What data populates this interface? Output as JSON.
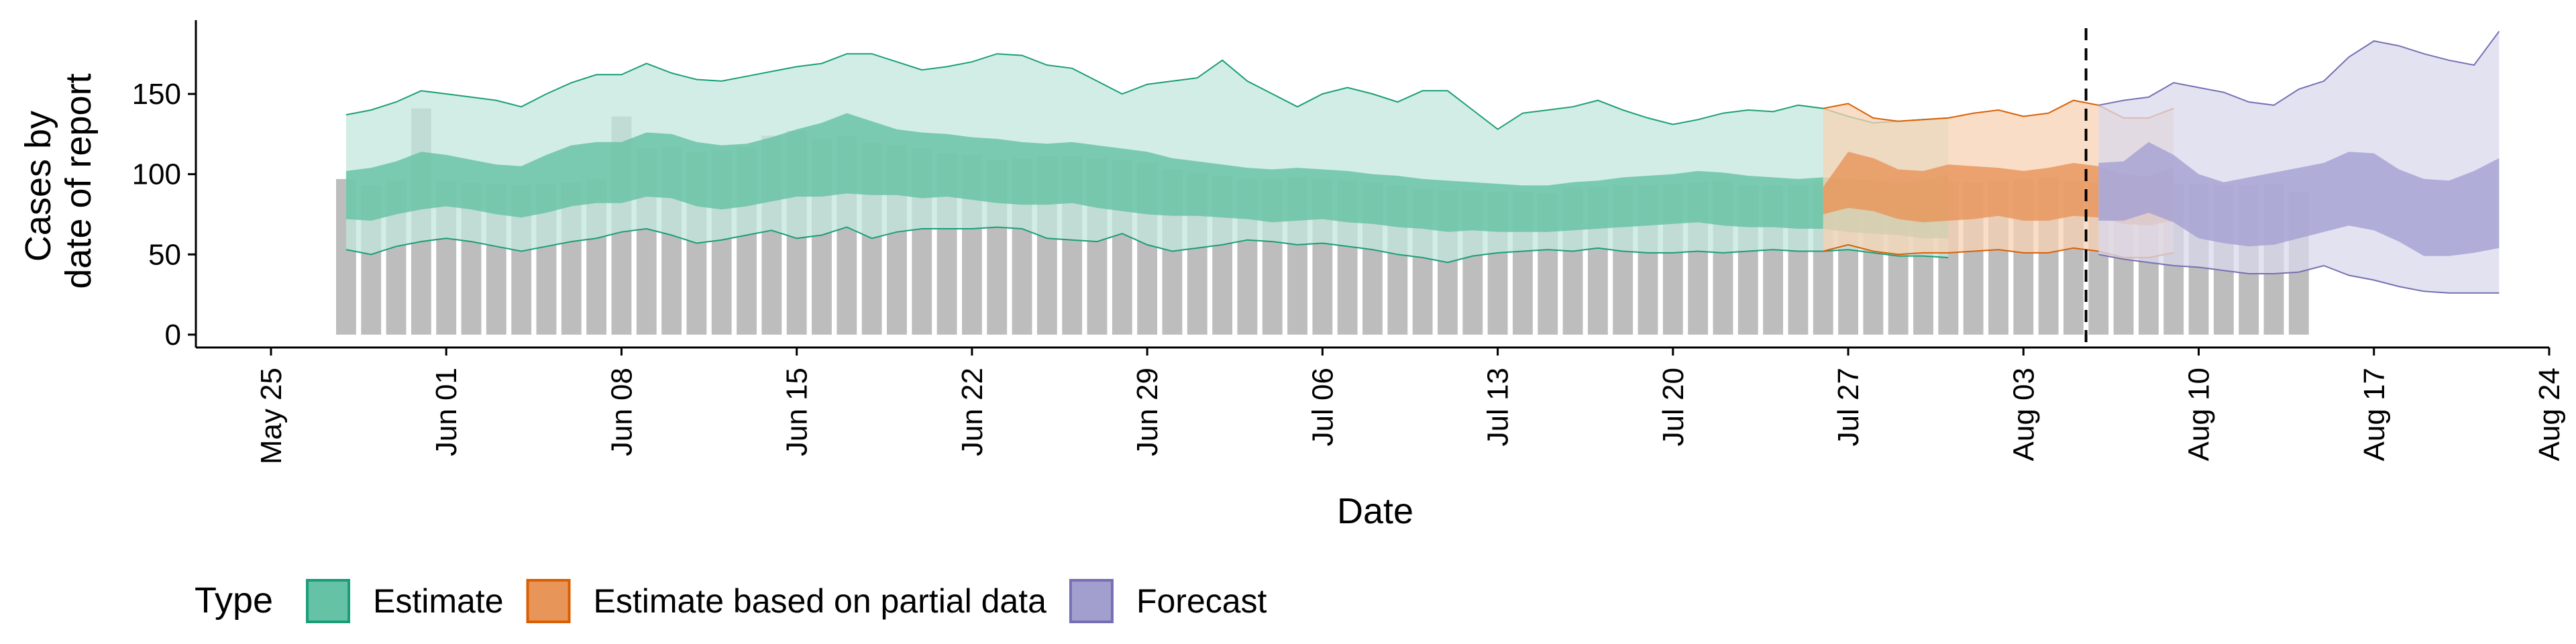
{
  "chart_data": {
    "type": "area",
    "xlabel": "Date",
    "ylabel_lines": [
      "Cases by",
      "date of report"
    ],
    "xlim": [
      "2020-05-22",
      "2020-08-24"
    ],
    "ylim": [
      -8,
      196
    ],
    "x_ticks": [
      {
        "date": "2020-05-25",
        "label": "May 25"
      },
      {
        "date": "2020-06-01",
        "label": "Jun 01"
      },
      {
        "date": "2020-06-08",
        "label": "Jun 08"
      },
      {
        "date": "2020-06-15",
        "label": "Jun 15"
      },
      {
        "date": "2020-06-22",
        "label": "Jun 22"
      },
      {
        "date": "2020-06-29",
        "label": "Jun 29"
      },
      {
        "date": "2020-07-06",
        "label": "Jul 06"
      },
      {
        "date": "2020-07-13",
        "label": "Jul 13"
      },
      {
        "date": "2020-07-20",
        "label": "Jul 20"
      },
      {
        "date": "2020-07-27",
        "label": "Jul 27"
      },
      {
        "date": "2020-08-03",
        "label": "Aug 03"
      },
      {
        "date": "2020-08-10",
        "label": "Aug 10"
      },
      {
        "date": "2020-08-17",
        "label": "Aug 17"
      },
      {
        "date": "2020-08-24",
        "label": "Aug 24"
      }
    ],
    "y_ticks": [
      0,
      50,
      100,
      150
    ],
    "grid": false,
    "legend_position": "bottom-left",
    "legend_title": "Type",
    "legend": [
      {
        "label": "Estimate",
        "fill": "#66c2a5",
        "stroke": "#1b9e77"
      },
      {
        "label": "Estimate based on partial data",
        "fill": "#e8955a",
        "stroke": "#d95f02"
      },
      {
        "label": "Forecast",
        "fill": "#a29fcf",
        "stroke": "#7570b3"
      }
    ],
    "colors": {
      "bars": "#bdbdbd",
      "estimate_outer": "#c3e7dc",
      "estimate_inner": "#66c2a5",
      "estimate_line": "#1b9e77",
      "partial_outer": "#f7d1b4",
      "partial_inner": "#e8955a",
      "partial_line": "#d95f02",
      "forecast_outer": "#d9d8ec",
      "forecast_inner": "#a5a1d3",
      "forecast_line": "#7570b3"
    },
    "reported_cases": {
      "start_date": "2020-05-28",
      "values": [
        97,
        93,
        96,
        141,
        96,
        95,
        94,
        93,
        94,
        95,
        97,
        136,
        116,
        117,
        114,
        115,
        117,
        124,
        127,
        122,
        124,
        120,
        118,
        116,
        113,
        112,
        109,
        110,
        111,
        111,
        110,
        109,
        107,
        103,
        101,
        99,
        97,
        97,
        98,
        97,
        96,
        95,
        93,
        91,
        90,
        90,
        89,
        89,
        88,
        92,
        92,
        93,
        93,
        94,
        95,
        96,
        93,
        93,
        93,
        95,
        95,
        96,
        97,
        97,
        95,
        95,
        96,
        97,
        98,
        96,
        95,
        94,
        95,
        94,
        94,
        93,
        93,
        94,
        89
      ]
    },
    "forecast_date": "2020-08-05",
    "estimate": {
      "start_date": "2020-05-28",
      "upper90": [
        137,
        140,
        145,
        152,
        150,
        148,
        146,
        142,
        150,
        157,
        162,
        162,
        169,
        163,
        159,
        158,
        161,
        164,
        167,
        169,
        175,
        175,
        170,
        165,
        167,
        170,
        175,
        174,
        168,
        166,
        158,
        150,
        156,
        158,
        160,
        171,
        158,
        150,
        142,
        150,
        154,
        150,
        145,
        152,
        152,
        140,
        128,
        138,
        140,
        142,
        146,
        140,
        135,
        131,
        134,
        138,
        140,
        139,
        143,
        141,
        136,
        132,
        133,
        134,
        135
      ],
      "upper50": [
        102,
        104,
        108,
        114,
        112,
        109,
        106,
        105,
        112,
        118,
        120,
        120,
        126,
        125,
        120,
        118,
        119,
        123,
        128,
        132,
        138,
        133,
        128,
        126,
        125,
        123,
        122,
        120,
        119,
        120,
        118,
        116,
        114,
        110,
        108,
        106,
        104,
        103,
        104,
        103,
        102,
        100,
        99,
        97,
        96,
        95,
        94,
        93,
        93,
        95,
        96,
        98,
        99,
        100,
        102,
        101,
        99,
        98,
        97,
        98,
        97,
        96,
        94,
        96,
        100
      ],
      "lower50": [
        72,
        71,
        75,
        78,
        80,
        78,
        75,
        73,
        76,
        80,
        82,
        82,
        86,
        85,
        80,
        78,
        80,
        83,
        86,
        86,
        88,
        87,
        87,
        85,
        86,
        84,
        82,
        81,
        81,
        82,
        79,
        77,
        75,
        74,
        74,
        73,
        72,
        70,
        71,
        72,
        70,
        69,
        67,
        66,
        64,
        65,
        64,
        64,
        64,
        65,
        66,
        67,
        68,
        69,
        70,
        68,
        67,
        67,
        66,
        66,
        64,
        63,
        62,
        60,
        60
      ],
      "lower90": [
        53,
        50,
        55,
        58,
        60,
        58,
        55,
        52,
        55,
        58,
        60,
        64,
        66,
        62,
        57,
        59,
        62,
        65,
        60,
        62,
        67,
        60,
        64,
        66,
        66,
        66,
        67,
        66,
        60,
        59,
        58,
        63,
        56,
        52,
        54,
        56,
        59,
        58,
        56,
        57,
        55,
        53,
        50,
        48,
        45,
        49,
        51,
        52,
        53,
        52,
        54,
        52,
        51,
        51,
        52,
        51,
        52,
        53,
        52,
        52,
        53,
        51,
        49,
        49,
        48
      ]
    },
    "partial_estimate": {
      "start_date": "2020-07-26",
      "upper90": [
        141,
        144,
        135,
        133,
        134,
        135,
        138,
        140,
        136,
        138,
        146,
        143,
        135,
        135,
        141
      ],
      "upper50": [
        92,
        114,
        110,
        103,
        102,
        106,
        105,
        104,
        102,
        104,
        107,
        105,
        100,
        99,
        104
      ],
      "lower50": [
        75,
        79,
        77,
        72,
        70,
        71,
        72,
        74,
        71,
        71,
        74,
        73,
        69,
        68,
        71
      ],
      "lower90": [
        52,
        56,
        52,
        50,
        51,
        51,
        52,
        53,
        51,
        51,
        54,
        52,
        48,
        48,
        51
      ]
    },
    "forecast": {
      "start_date": "2020-08-06",
      "upper90": [
        143,
        146,
        148,
        157,
        154,
        151,
        145,
        143,
        153,
        158,
        173,
        183,
        180,
        175,
        171,
        168,
        189
      ],
      "upper50": [
        107,
        108,
        120,
        112,
        100,
        95,
        98,
        101,
        104,
        107,
        114,
        113,
        103,
        97,
        96,
        102,
        110
      ],
      "lower50": [
        71,
        71,
        76,
        70,
        60,
        57,
        55,
        56,
        60,
        64,
        68,
        65,
        58,
        49,
        49,
        51,
        54
      ],
      "lower90": [
        50,
        47,
        45,
        43,
        42,
        40,
        38,
        38,
        39,
        43,
        37,
        34,
        30,
        27,
        26,
        26,
        26
      ]
    }
  }
}
